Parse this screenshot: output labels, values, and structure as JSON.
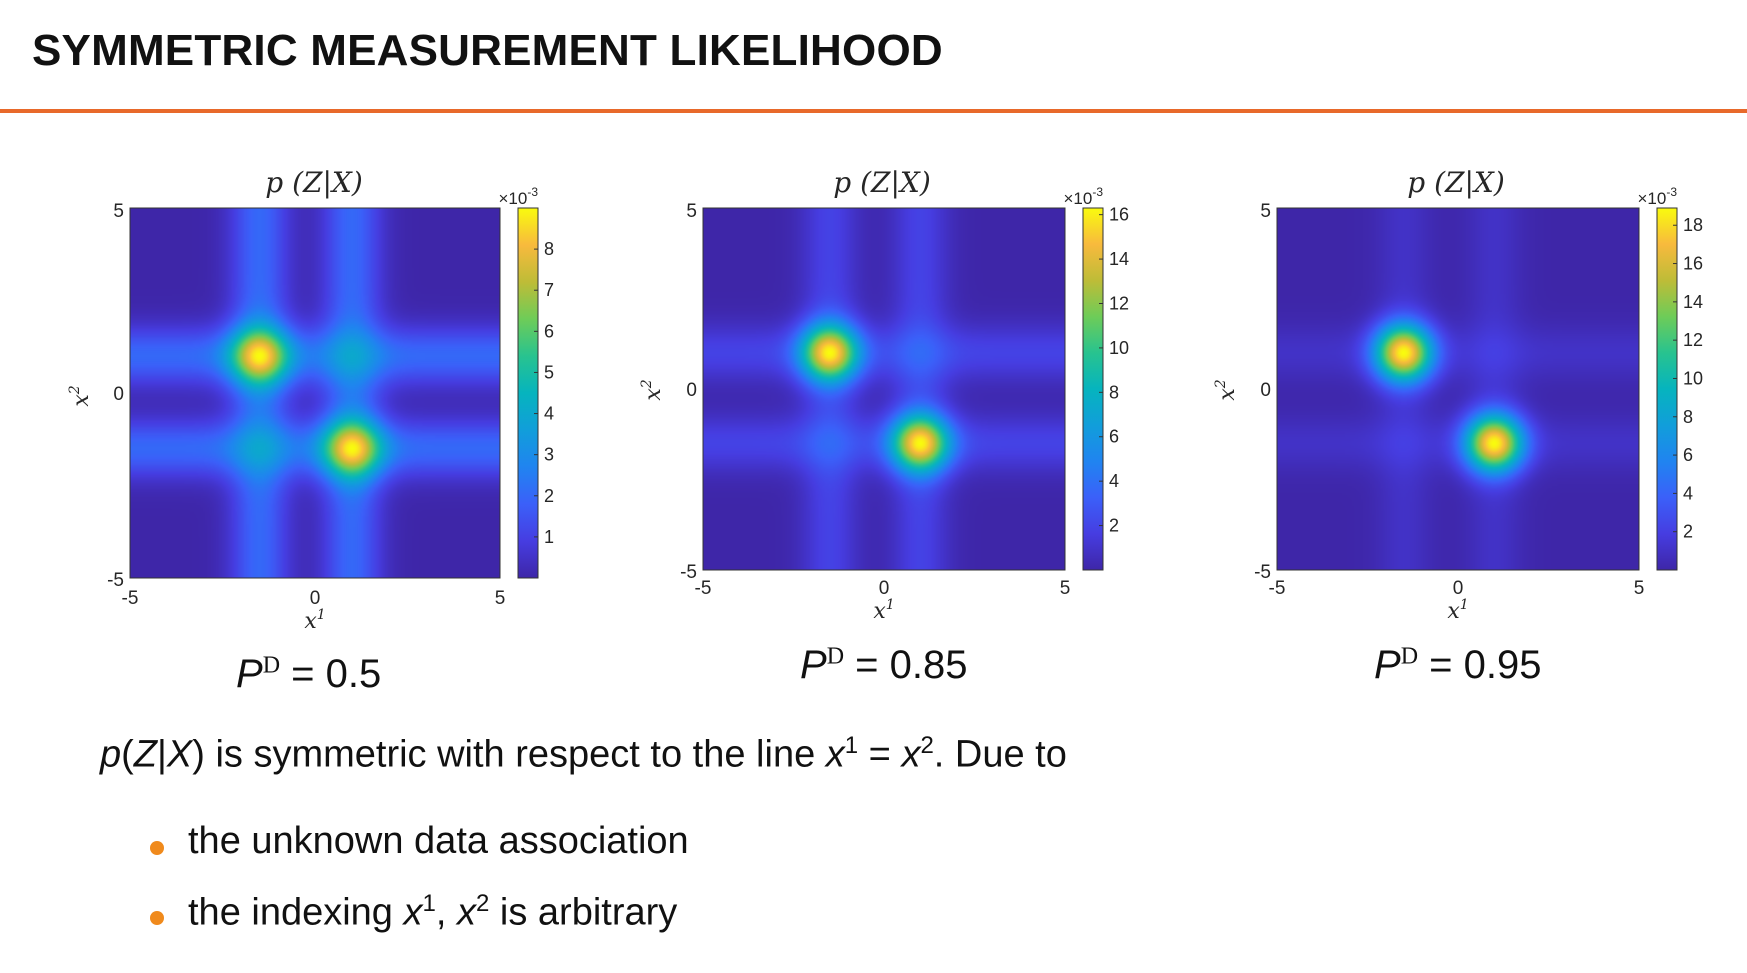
{
  "slide": {
    "title": "SYMMETRIC MEASUREMENT LIKELIHOOD",
    "accent_color": "#e8692a",
    "bullet_color": "#f08a1c"
  },
  "chart_data": [
    {
      "type": "heatmap",
      "title": "p (Z|X)",
      "xlabel": "x1",
      "ylabel": "x2",
      "xlim": [
        -5,
        5
      ],
      "ylim": [
        -5,
        5
      ],
      "x_ticks": [
        "-5",
        "0",
        "5"
      ],
      "y_ticks": [
        "-5",
        "0",
        "5"
      ],
      "colorbar": {
        "multiplier": "×10",
        "exponent": "-3",
        "ticks": [
          "1",
          "2",
          "3",
          "4",
          "5",
          "6",
          "7",
          "8"
        ],
        "range": [
          0,
          9
        ]
      },
      "colormap": "parula",
      "peaks": [
        {
          "x": -1.5,
          "y": 1.0
        },
        {
          "x": 1.0,
          "y": -1.5
        }
      ],
      "caption": {
        "symbol": "P",
        "sup": "D",
        "equals": "=",
        "value": "0.5"
      }
    },
    {
      "type": "heatmap",
      "title": "p (Z|X)",
      "xlabel": "x1",
      "ylabel": "x2",
      "xlim": [
        -5,
        5
      ],
      "ylim": [
        -5,
        5
      ],
      "x_ticks": [
        "-5",
        "0",
        "5"
      ],
      "y_ticks": [
        "-5",
        "0",
        "5"
      ],
      "colorbar": {
        "multiplier": "×10",
        "exponent": "-3",
        "ticks": [
          "2",
          "4",
          "6",
          "8",
          "10",
          "12",
          "14",
          "16"
        ],
        "range": [
          0,
          16.3
        ]
      },
      "colormap": "parula",
      "peaks": [
        {
          "x": -1.5,
          "y": 1.0
        },
        {
          "x": 1.0,
          "y": -1.5
        }
      ],
      "caption": {
        "symbol": "P",
        "sup": "D",
        "equals": "=",
        "value": "0.85"
      }
    },
    {
      "type": "heatmap",
      "title": "p (Z|X)",
      "xlabel": "x1",
      "ylabel": "x2",
      "xlim": [
        -5,
        5
      ],
      "ylim": [
        -5,
        5
      ],
      "x_ticks": [
        "-5",
        "0",
        "5"
      ],
      "y_ticks": [
        "-5",
        "0",
        "5"
      ],
      "colorbar": {
        "multiplier": "×10",
        "exponent": "-3",
        "ticks": [
          "2",
          "4",
          "6",
          "8",
          "10",
          "12",
          "14",
          "16",
          "18"
        ],
        "range": [
          0,
          18.9
        ]
      },
      "colormap": "parula",
      "peaks": [
        {
          "x": -1.5,
          "y": 1.0
        },
        {
          "x": 1.0,
          "y": -1.5
        }
      ],
      "caption": {
        "symbol": "P",
        "sup": "D",
        "equals": "=",
        "value": "0.95"
      }
    }
  ],
  "body": {
    "p": "p",
    "open": "(",
    "Z": "Z",
    "bar": "|",
    "X": "X",
    "close": ")",
    "text1": " is symmetric with respect to the line ",
    "x": "x",
    "sup1": "1",
    "eq": " = ",
    "sup2": "2",
    "text2": ". Due to",
    "bullet1": "the unknown data association",
    "bullet2_a": "the indexing ",
    "bullet2_sep": ", ",
    "bullet2_b": " is arbitrary"
  }
}
